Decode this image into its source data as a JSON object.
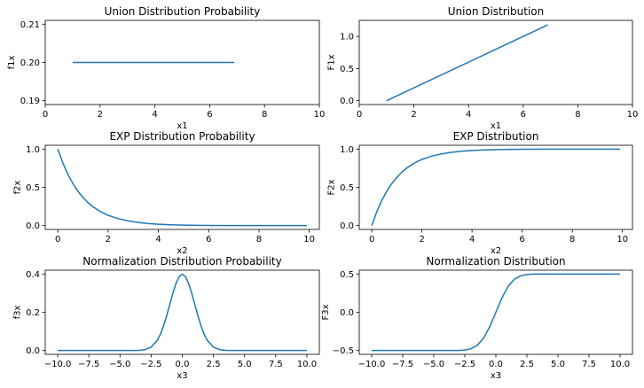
{
  "chart_data": [
    {
      "type": "line",
      "title": "Union Distribution Probability",
      "xlabel": "x1",
      "ylabel": "f1x",
      "xlim": [
        0,
        10
      ],
      "ylim": [
        0.189,
        0.211
      ],
      "xticks": [
        0,
        2,
        4,
        6,
        8,
        10
      ],
      "xtick_labels": [
        "0",
        "2",
        "4",
        "6",
        "8",
        "10"
      ],
      "yticks": [
        0.19,
        0.2,
        0.21
      ],
      "ytick_labels": [
        "0.19",
        "0.20",
        "0.21"
      ],
      "series": [
        {
          "x": [
            1,
            6.9
          ],
          "y": [
            0.2,
            0.2
          ]
        }
      ]
    },
    {
      "type": "line",
      "title": "Union Distribution",
      "xlabel": "x1",
      "ylabel": "F1x",
      "xlim": [
        0,
        10
      ],
      "ylim": [
        -0.06,
        1.25
      ],
      "xticks": [
        0,
        2,
        4,
        6,
        8,
        10
      ],
      "xtick_labels": [
        "0",
        "2",
        "4",
        "6",
        "8",
        "10"
      ],
      "yticks": [
        0,
        0.5,
        1
      ],
      "ytick_labels": [
        "0.0",
        "0.5",
        "1.0"
      ],
      "series": [
        {
          "x": [
            1,
            6.9
          ],
          "y": [
            0,
            1.18
          ]
        }
      ]
    },
    {
      "type": "line",
      "title": "EXP Distribution Probability",
      "xlabel": "x2",
      "ylabel": "f2x",
      "xlim": [
        -0.5,
        10.4
      ],
      "ylim": [
        -0.05,
        1.05
      ],
      "xticks": [
        0,
        2,
        4,
        6,
        8,
        10
      ],
      "xtick_labels": [
        "0",
        "2",
        "4",
        "6",
        "8",
        "10"
      ],
      "yticks": [
        0,
        0.5,
        1
      ],
      "ytick_labels": [
        "0.0",
        "0.5",
        "1.0"
      ],
      "series": [
        {
          "x": [
            0,
            0.2,
            0.4,
            0.6,
            0.8,
            1.0,
            1.2,
            1.4,
            1.6,
            1.8,
            2.0,
            2.4,
            2.8,
            3.2,
            3.6,
            4.0,
            4.5,
            5.0,
            5.5,
            6.0,
            7.0,
            8.0,
            9.0,
            9.9
          ],
          "y": [
            1.0,
            0.819,
            0.67,
            0.549,
            0.449,
            0.368,
            0.301,
            0.247,
            0.202,
            0.165,
            0.135,
            0.091,
            0.061,
            0.041,
            0.027,
            0.018,
            0.011,
            0.007,
            0.004,
            0.002,
            0.001,
            0.0003,
            0.0001,
            0.0001
          ]
        }
      ]
    },
    {
      "type": "line",
      "title": "EXP Distribution",
      "xlabel": "x2",
      "ylabel": "F2x",
      "xlim": [
        -0.5,
        10.4
      ],
      "ylim": [
        -0.05,
        1.05
      ],
      "xticks": [
        0,
        2,
        4,
        6,
        8,
        10
      ],
      "xtick_labels": [
        "0",
        "2",
        "4",
        "6",
        "8",
        "10"
      ],
      "yticks": [
        0,
        0.5,
        1
      ],
      "ytick_labels": [
        "0.0",
        "0.5",
        "1.0"
      ],
      "series": [
        {
          "x": [
            0,
            0.2,
            0.4,
            0.6,
            0.8,
            1.0,
            1.2,
            1.4,
            1.6,
            1.8,
            2.0,
            2.4,
            2.8,
            3.2,
            3.6,
            4.0,
            4.5,
            5.0,
            5.5,
            6.0,
            7.0,
            8.0,
            9.0,
            9.9
          ],
          "y": [
            0.0,
            0.181,
            0.33,
            0.451,
            0.551,
            0.632,
            0.699,
            0.753,
            0.798,
            0.835,
            0.865,
            0.909,
            0.939,
            0.959,
            0.973,
            0.982,
            0.989,
            0.993,
            0.996,
            0.998,
            0.999,
            0.9997,
            0.9999,
            0.9999
          ]
        }
      ]
    },
    {
      "type": "line",
      "title": "Normalization Distribution Probability",
      "xlabel": "x3",
      "ylabel": "f3x",
      "xlim": [
        -11,
        11
      ],
      "ylim": [
        -0.02,
        0.42
      ],
      "xticks": [
        -10,
        -7.5,
        -5,
        -2.5,
        0,
        2.5,
        5,
        7.5,
        10
      ],
      "xtick_labels": [
        "−10.0",
        "−7.5",
        "−5.0",
        "−2.5",
        "0.0",
        "2.5",
        "5.0",
        "7.5",
        "10.0"
      ],
      "yticks": [
        0,
        0.2,
        0.4
      ],
      "ytick_labels": [
        "0.0",
        "0.2",
        "0.4"
      ],
      "series": [
        {
          "x": [
            -10,
            -4,
            -3.5,
            -3,
            -2.5,
            -2,
            -1.75,
            -1.5,
            -1.25,
            -1,
            -0.75,
            -0.5,
            -0.25,
            0,
            0.25,
            0.5,
            0.75,
            1,
            1.25,
            1.5,
            1.75,
            2,
            2.5,
            3,
            3.5,
            4,
            10
          ],
          "y": [
            0,
            0.0001,
            0.0009,
            0.0044,
            0.0175,
            0.054,
            0.0863,
            0.1295,
            0.1826,
            0.242,
            0.3011,
            0.3521,
            0.3867,
            0.3989,
            0.3867,
            0.3521,
            0.3011,
            0.242,
            0.1826,
            0.1295,
            0.0863,
            0.054,
            0.0175,
            0.0044,
            0.0009,
            0.0001,
            0
          ]
        }
      ]
    },
    {
      "type": "line",
      "title": "Normalization Distribution",
      "xlabel": "x3",
      "ylabel": "F3x",
      "xlim": [
        -11,
        11
      ],
      "ylim": [
        -0.55,
        0.55
      ],
      "xticks": [
        -10,
        -7.5,
        -5,
        -2.5,
        0,
        2.5,
        5,
        7.5,
        10
      ],
      "xtick_labels": [
        "−10.0",
        "−7.5",
        "−5.0",
        "−2.5",
        "0.0",
        "2.5",
        "5.0",
        "7.5",
        "10.0"
      ],
      "yticks": [
        -0.5,
        0,
        0.5
      ],
      "ytick_labels": [
        "−0.5",
        "0.0",
        "0.5"
      ],
      "series": [
        {
          "x": [
            -10,
            -4,
            -3,
            -2.5,
            -2,
            -1.5,
            -1,
            -0.5,
            0,
            0.5,
            1,
            1.5,
            2,
            2.5,
            3,
            4,
            10
          ],
          "y": [
            -0.5,
            -0.5,
            -0.4987,
            -0.4938,
            -0.4772,
            -0.4332,
            -0.3413,
            -0.1915,
            0,
            0.1915,
            0.3413,
            0.4332,
            0.4772,
            0.4938,
            0.4987,
            0.5,
            0.5
          ]
        }
      ]
    }
  ]
}
